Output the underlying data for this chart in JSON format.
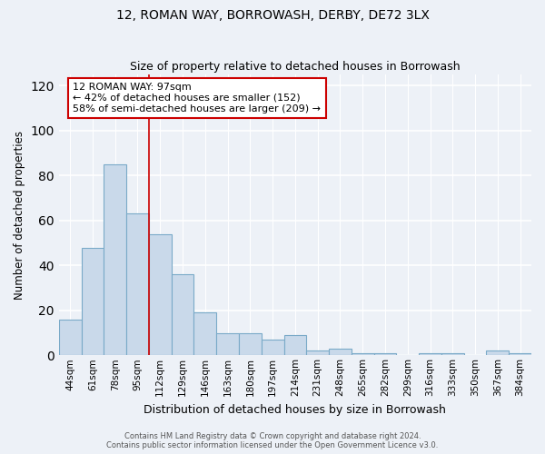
{
  "title": "12, ROMAN WAY, BORROWASH, DERBY, DE72 3LX",
  "subtitle": "Size of property relative to detached houses in Borrowash",
  "xlabel": "Distribution of detached houses by size in Borrowash",
  "ylabel": "Number of detached properties",
  "bar_color": "#c9d9ea",
  "bar_edge_color": "#7aaac8",
  "categories": [
    "44sqm",
    "61sqm",
    "78sqm",
    "95sqm",
    "112sqm",
    "129sqm",
    "146sqm",
    "163sqm",
    "180sqm",
    "197sqm",
    "214sqm",
    "231sqm",
    "248sqm",
    "265sqm",
    "282sqm",
    "299sqm",
    "316sqm",
    "333sqm",
    "350sqm",
    "367sqm",
    "384sqm"
  ],
  "values": [
    16,
    48,
    85,
    63,
    54,
    36,
    19,
    10,
    10,
    7,
    9,
    2,
    3,
    1,
    1,
    0,
    1,
    1,
    0,
    2,
    1
  ],
  "ylim": [
    0,
    125
  ],
  "yticks": [
    0,
    20,
    40,
    60,
    80,
    100,
    120
  ],
  "annotation_title": "12 ROMAN WAY: 97sqm",
  "annotation_line1": "← 42% of detached houses are smaller (152)",
  "annotation_line2": "58% of semi-detached houses are larger (209) →",
  "vline_x_index": 3,
  "vline_color": "#cc0000",
  "footer1": "Contains HM Land Registry data © Crown copyright and database right 2024.",
  "footer2": "Contains public sector information licensed under the Open Government Licence v3.0.",
  "background_color": "#edf1f7",
  "grid_color": "#ffffff",
  "annotation_box_color": "#ffffff",
  "annotation_box_edge_color": "#cc0000"
}
